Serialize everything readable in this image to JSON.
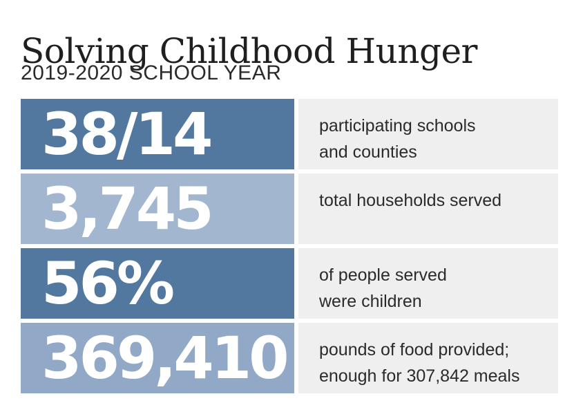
{
  "header": {
    "title": "Solving Childhood Hunger",
    "subtitle": "2019-2020 SCHOOL YEAR"
  },
  "stats": [
    {
      "value": "38/14",
      "description_lines": [
        "participating schools",
        "and counties"
      ],
      "color": "#52789f"
    },
    {
      "value": "3,745",
      "description_lines": [
        "total households served"
      ],
      "color": "#a3b6cf"
    },
    {
      "value": "56%",
      "description_lines": [
        "of people served",
        "were children"
      ],
      "color": "#52789f"
    },
    {
      "value": "369,410",
      "description_lines": [
        "pounds of food provided;",
        "enough for 307,842 meals"
      ],
      "color": "#91a9c7"
    }
  ],
  "colors": {
    "dark_blue": "#52789f",
    "light_blue": "#a3b6cf",
    "mid_blue": "#91a9c7",
    "description_bg": "#efefef"
  }
}
